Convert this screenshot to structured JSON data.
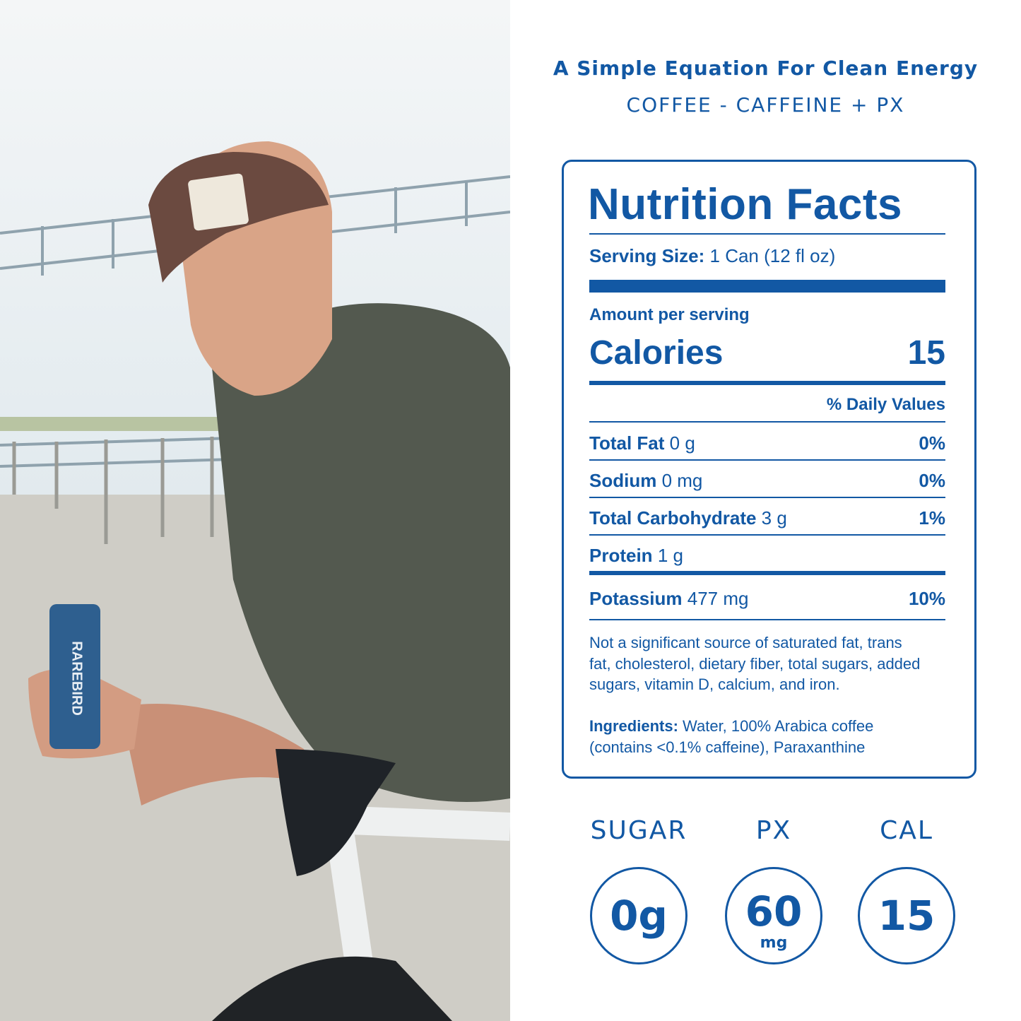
{
  "header": {
    "title": "A Simple Equation For Clean Energy",
    "subtitle": "COFFEE - CAFFEINE + PX"
  },
  "photo": {
    "can_brand": "RAREBIRD"
  },
  "nutrition": {
    "title": "Nutrition Facts",
    "serving_size": {
      "label": "Serving Size:",
      "value": "1 Can (12 fl oz)"
    },
    "amount_label": "Amount per serving",
    "calories": {
      "label": "Calories",
      "value": "15"
    },
    "dv_header": "% Daily Values",
    "rows": [
      {
        "name": "Total Fat",
        "amount": "0 g",
        "dv": "0%"
      },
      {
        "name": "Sodium",
        "amount": "0 mg",
        "dv": "0%"
      },
      {
        "name": "Total Carbohydrate",
        "amount": "3 g",
        "dv": "1%"
      },
      {
        "name": "Protein",
        "amount": "1 g",
        "dv": null
      },
      {
        "name": "Potassium",
        "amount": "477 mg",
        "dv": "10%"
      }
    ],
    "footnote": [
      "Not a significant source of saturated fat, trans",
      "fat, cholesterol, dietary fiber, total sugars, added",
      "sugars, vitamin D, calcium, and iron."
    ],
    "ingredients": {
      "label": "Ingredients:",
      "lines": [
        "Water, 100% Arabica coffee",
        "(contains <0.1% caffeine), Paraxanthine"
      ]
    }
  },
  "stats": [
    {
      "label": "SUGAR",
      "value": "0g",
      "unit": null
    },
    {
      "label": "PX",
      "value": "60",
      "unit": "mg"
    },
    {
      "label": "CAL",
      "value": "15",
      "unit": null
    }
  ]
}
